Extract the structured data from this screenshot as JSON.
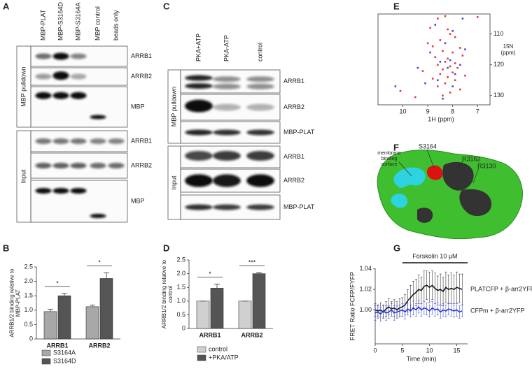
{
  "panels": {
    "A": {
      "letter": "A",
      "lanes": [
        "MBP-PLAT",
        "MBP-S3164D",
        "MBP-S3164A",
        "MBP control",
        "beads only"
      ],
      "groups": [
        "MBP pulldown",
        "Input"
      ],
      "rows": [
        "ARRB1",
        "ARRB2",
        "MBP",
        "ARRB1",
        "ARRB2",
        "MBP"
      ]
    },
    "C": {
      "letter": "C",
      "lanes": [
        "PKA+ATP",
        "PKA-ATP",
        "control"
      ],
      "groups": [
        "MBP pulldown",
        "Input"
      ],
      "rows": [
        "ARRB1",
        "ARRB2",
        "MBP-PLAT",
        "ARRB1",
        "ARRB2",
        "MBP-PLAT"
      ]
    },
    "F": {
      "letter": "F",
      "labels": [
        "membrane binding surface",
        "S3164",
        "R3162",
        "R3130"
      ]
    }
  },
  "chart_data": [
    {
      "type": "bar",
      "letter": "B",
      "y_label": "ARRB1/2 binding relative to MBP-PLAT",
      "categories": [
        "ARRB1",
        "ARRB2"
      ],
      "series": [
        {
          "name": "S3164A",
          "color": "#a8a8a8",
          "values": [
            0.95,
            1.12
          ],
          "errors": [
            0.08,
            0.06
          ]
        },
        {
          "name": "S3164D",
          "color": "#555555",
          "values": [
            1.5,
            2.1
          ],
          "errors": [
            0.08,
            0.2
          ]
        }
      ],
      "significance": [
        "*",
        "*"
      ],
      "ylim": [
        0,
        2.5
      ],
      "yticks": [
        0,
        0.5,
        {
          "value": 1,
          "label": "1.0"
        },
        1.5,
        {
          "value": 2,
          "label": "2.0"
        },
        2.5
      ]
    },
    {
      "type": "bar",
      "letter": "D",
      "y_label": "ARRB1/2 binding relative to control",
      "categories": [
        "ARRB1",
        "ARRB2"
      ],
      "series": [
        {
          "name": "control",
          "color": "#d0d0d0",
          "values": [
            1,
            1
          ],
          "errors": [
            0,
            0
          ]
        },
        {
          "name": "+PKA/ATP",
          "color": "#555555",
          "values": [
            1.47,
            2.0
          ],
          "errors": [
            0.15,
            0.04
          ]
        }
      ],
      "significance": [
        "*",
        "***"
      ],
      "ylim": [
        0,
        2.5
      ],
      "yticks": [
        0,
        0.5,
        {
          "value": 1,
          "label": "1.0"
        },
        1.5,
        {
          "value": 2,
          "label": "2.0"
        },
        2.5
      ]
    },
    {
      "type": "scatter",
      "letter": "E",
      "x_label": "1H (ppm)",
      "y_label": "15N (ppm)",
      "series": [
        {
          "color": "#e8383d",
          "x": [
            8.3,
            7.0,
            8.6,
            8.9,
            8.2,
            8.1,
            7.9,
            8.5,
            9.0,
            8.8,
            7.7,
            8.4,
            8.0,
            7.6,
            8.7,
            8.2,
            8.3,
            7.9,
            8.6,
            8.1,
            7.8,
            8.4,
            9.2,
            8.0,
            8.5,
            7.5,
            8.2,
            8.8,
            7.9,
            8.3,
            8.6,
            7.7,
            8.1,
            8.4,
            10.1,
            9.5
          ],
          "values": [
            104.2,
            104.5,
            105,
            108,
            108.5,
            110,
            111,
            112,
            113,
            114,
            114.5,
            115.5,
            116,
            117,
            117.5,
            118,
            119,
            119.5,
            120,
            120.5,
            121,
            121.5,
            122,
            122.5,
            123,
            123.5,
            124,
            124.5,
            125,
            126,
            127,
            128,
            129,
            130,
            128.5,
            130.5
          ]
        },
        {
          "color": "#3a4fd6",
          "x": [
            7.6,
            8.7,
            8.0,
            8.3,
            7.5,
            8.9,
            8.1,
            7.7,
            8.5,
            8.2,
            9.4,
            7.9,
            8.6,
            8.0,
            10.3,
            8.4,
            9.1
          ],
          "values": [
            105,
            107,
            109,
            113,
            115,
            116,
            118.5,
            120,
            119,
            121,
            121,
            123,
            125,
            127,
            127,
            131,
            126
          ]
        }
      ],
      "xlim": [
        11,
        6.5
      ],
      "xticks": [
        10,
        9,
        8,
        7
      ],
      "ylim": [
        103.5,
        133
      ],
      "yticks": [
        110,
        120,
        130
      ]
    },
    {
      "type": "line",
      "letter": "G",
      "x_label": "Time (min)",
      "y_label": "FRET Ratio FCFP/FYFP",
      "annotation": {
        "text": "Forskolin 10 µM",
        "x": [
          5,
          17
        ]
      },
      "x": [
        0,
        0.5,
        1,
        1.5,
        2,
        2.5,
        3,
        3.5,
        4,
        4.5,
        5,
        5.5,
        6,
        6.5,
        7,
        7.5,
        8,
        8.5,
        9,
        9.5,
        10,
        10.5,
        11,
        11.5,
        12,
        12.5,
        13,
        13.5,
        14,
        14.5,
        15,
        15.5,
        16
      ],
      "series": [
        {
          "name": "PLATCFP + β-arr2YFP",
          "color": "#111111",
          "values": [
            1.0,
            0.999,
            1.0,
            0.998,
            1.001,
            1.003,
            1.001,
            1.002,
            1.0,
            1.002,
            1.003,
            1.005,
            1.009,
            1.012,
            1.015,
            1.017,
            1.02,
            1.019,
            1.023,
            1.024,
            1.022,
            1.024,
            1.021,
            1.019,
            1.02,
            1.018,
            1.022,
            1.02,
            1.021,
            1.02,
            1.022,
            1.021,
            1.02
          ],
          "errors": [
            0.006,
            0.006,
            0.007,
            0.006,
            0.007,
            0.008,
            0.007,
            0.008,
            0.008,
            0.009,
            0.009,
            0.01,
            0.011,
            0.012,
            0.013,
            0.013,
            0.014,
            0.013,
            0.015,
            0.014,
            0.015,
            0.014,
            0.015,
            0.014,
            0.015,
            0.014,
            0.015,
            0.014,
            0.015,
            0.014,
            0.015,
            0.014,
            0.015
          ]
        },
        {
          "name": "CFPm + β-arr2YFP",
          "color": "#2233cc",
          "values": [
            0.997,
            0.998,
            0.996,
            0.999,
            0.997,
            0.998,
            1.0,
            0.997,
            0.998,
            0.999,
            1.0,
            0.998,
            1.001,
            0.999,
            1.002,
            1.0,
            1.003,
            1.0,
            1.002,
            1.001,
            0.999,
            1.002,
            1.0,
            1.001,
            0.998,
            1.0,
            0.999,
            1.001,
            1.0,
            0.999,
            1.0,
            0.998,
            0.999
          ],
          "errors": [
            0.007,
            0.006,
            0.007,
            0.006,
            0.007,
            0.006,
            0.006,
            0.007,
            0.006,
            0.006,
            0.006,
            0.007,
            0.006,
            0.006,
            0.007,
            0.006,
            0.006,
            0.006,
            0.006,
            0.006,
            0.006,
            0.006,
            0.006,
            0.006,
            0.006,
            0.006,
            0.006,
            0.006,
            0.006,
            0.006,
            0.006,
            0.006,
            0.006
          ]
        }
      ],
      "xlim": [
        0,
        17
      ],
      "xticks": [
        0,
        5,
        10,
        15
      ],
      "ylim": [
        0.967,
        1.0405
      ],
      "yticks": [
        {
          "value": 1,
          "label": "1.00"
        },
        1.02,
        1.04
      ]
    }
  ]
}
